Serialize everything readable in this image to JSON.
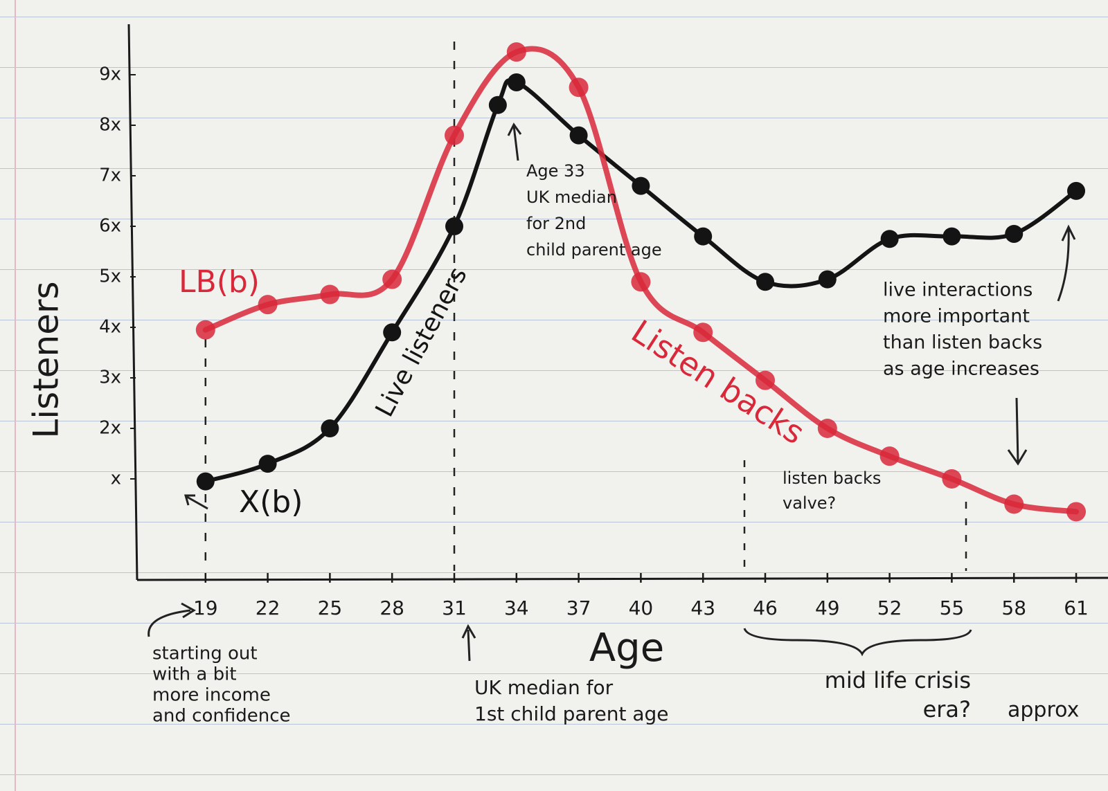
{
  "chart_data": {
    "type": "line",
    "x_label": "Age",
    "y_label": "Listeners",
    "xlim": [
      15.7,
      61.5
    ],
    "ylim": [
      -1,
      10
    ],
    "xticks": [
      19,
      22,
      25,
      28,
      31,
      34,
      37,
      40,
      43,
      46,
      49,
      52,
      55,
      58,
      61
    ],
    "yticks": [
      {
        "value": 1,
        "label": "x"
      },
      {
        "value": 2,
        "label": "2x"
      },
      {
        "value": 3,
        "label": "3x"
      },
      {
        "value": 4,
        "label": "4x"
      },
      {
        "value": 5,
        "label": "5x"
      },
      {
        "value": 6,
        "label": "6x"
      },
      {
        "value": 7,
        "label": "7x"
      },
      {
        "value": 8,
        "label": "8x"
      },
      {
        "value": 9,
        "label": "9x"
      }
    ],
    "series": [
      {
        "name": "Live listeners",
        "label": "X(b)",
        "color": "#141414",
        "x": [
          19,
          22,
          25,
          28,
          31,
          33.1,
          34,
          37,
          40,
          43,
          46,
          49,
          52,
          55,
          58,
          61
        ],
        "values": [
          0.95,
          1.3,
          2.0,
          3.9,
          6.0,
          8.4,
          8.85,
          7.8,
          6.8,
          5.8,
          4.9,
          4.95,
          5.75,
          5.8,
          5.85,
          6.7
        ]
      },
      {
        "name": "Listen backs",
        "label": "LB(b)",
        "color": "#d8283a",
        "x": [
          19,
          22,
          25,
          28,
          31,
          34,
          37,
          40,
          43,
          46,
          49,
          52,
          55,
          58,
          61
        ],
        "values": [
          3.95,
          4.45,
          4.65,
          4.95,
          7.8,
          9.45,
          8.75,
          4.9,
          3.9,
          2.95,
          2.0,
          1.45,
          1.0,
          0.5,
          0.35
        ]
      }
    ],
    "annotations": [
      [
        "Age 33",
        "UK median",
        "for 2nd",
        "child parent age"
      ],
      [
        "starting out",
        "with a bit",
        "more income",
        "and confidence"
      ],
      [
        "UK median for",
        "1st child parent age"
      ],
      [
        "listen backs",
        "valve?"
      ],
      [
        "mid life crisis",
        "era?"
      ],
      [
        "approx"
      ],
      [
        "live interactions",
        "more important",
        "than listen backs",
        "as age increases"
      ]
    ]
  }
}
